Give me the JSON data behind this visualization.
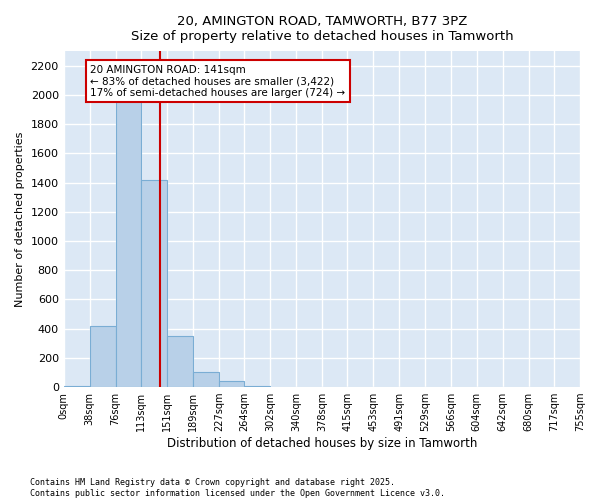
{
  "title_line1": "20, AMINGTON ROAD, TAMWORTH, B77 3PZ",
  "title_line2": "Size of property relative to detached houses in Tamworth",
  "xlabel": "Distribution of detached houses by size in Tamworth",
  "ylabel": "Number of detached properties",
  "bar_color": "#b8d0e8",
  "bar_edge_color": "#7aadd4",
  "background_color": "#dce8f5",
  "grid_color": "#ffffff",
  "annotation_box_color": "#cc0000",
  "vline_color": "#cc0000",
  "annotation_text": "20 AMINGTON ROAD: 141sqm\n← 83% of detached houses are smaller (3,422)\n17% of semi-detached houses are larger (724) →",
  "property_size": 141,
  "bin_edges": [
    0,
    38,
    76,
    113,
    151,
    189,
    227,
    264,
    302,
    340,
    378,
    415,
    453,
    491,
    529,
    566,
    604,
    642,
    680,
    717,
    755
  ],
  "bar_heights": [
    10,
    420,
    2000,
    1420,
    350,
    100,
    40,
    10,
    2,
    0,
    0,
    0,
    0,
    0,
    0,
    0,
    0,
    0,
    0,
    0
  ],
  "ylim": [
    0,
    2300
  ],
  "yticks": [
    0,
    200,
    400,
    600,
    800,
    1000,
    1200,
    1400,
    1600,
    1800,
    2000,
    2200
  ],
  "tick_labels": [
    "0sqm",
    "38sqm",
    "76sqm",
    "113sqm",
    "151sqm",
    "189sqm",
    "227sqm",
    "264sqm",
    "302sqm",
    "340sqm",
    "378sqm",
    "415sqm",
    "453sqm",
    "491sqm",
    "529sqm",
    "566sqm",
    "604sqm",
    "642sqm",
    "680sqm",
    "717sqm",
    "755sqm"
  ],
  "footer_text": "Contains HM Land Registry data © Crown copyright and database right 2025.\nContains public sector information licensed under the Open Government Licence v3.0.",
  "figsize": [
    6.0,
    5.0
  ],
  "dpi": 100
}
